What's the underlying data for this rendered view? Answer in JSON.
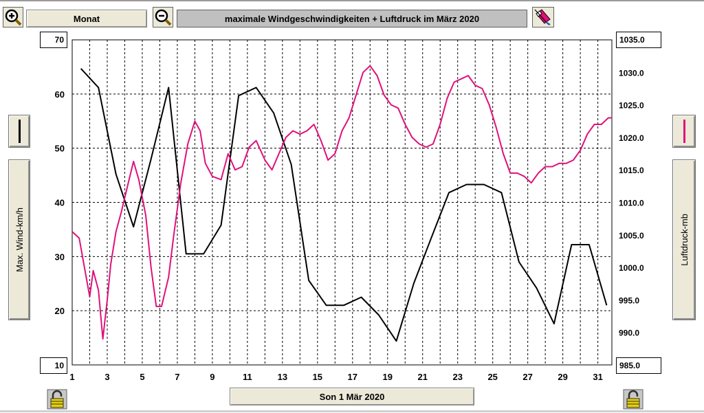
{
  "toolbar": {
    "zoom_in_icon": "magnifier-plus-icon",
    "period_label": "Monat",
    "zoom_out_icon": "magnifier-minus-icon",
    "title": "maximale Windgeschwindigkeiten + Luftdruck im März 2020",
    "tool_icon": "eraser-pencil-icon"
  },
  "left_axis": {
    "label": "Max. Wind-km/h",
    "top_value": "70",
    "bottom_value": "10",
    "legend_color": "#000000"
  },
  "right_axis": {
    "label": "Luftdruck-mb",
    "top_value": "1035.0",
    "bottom_value": "985.0",
    "legend_color": "#e0107a"
  },
  "footer": {
    "date_label": "Son 1 Mär 2020",
    "lock_icon": "padlock-icon"
  },
  "chart_data": {
    "type": "line",
    "xlim": [
      1,
      31.8
    ],
    "xticks": [
      "1",
      "3",
      "5",
      "7",
      "9",
      "11",
      "13",
      "15",
      "17",
      "19",
      "21",
      "23",
      "25",
      "27",
      "29",
      "31"
    ],
    "left_ylim": [
      10,
      70
    ],
    "left_yticks": [
      "20",
      "30",
      "40",
      "50",
      "60"
    ],
    "right_ylim": [
      985,
      1035
    ],
    "right_yticks": [
      "990.0",
      "995.0",
      "1000.0",
      "1005.0",
      "1010.0",
      "1015.0",
      "1020.0",
      "1025.0",
      "1030.0"
    ],
    "grid": true,
    "series": [
      {
        "axis": "left",
        "color": "#000000",
        "x": [
          1.5,
          2.5,
          3.5,
          4.5,
          5.5,
          6.5,
          7.5,
          8.5,
          9.5,
          10.5,
          11.5,
          12.5,
          13.5,
          14.5,
          15.5,
          16.5,
          17.5,
          18.5,
          19.5,
          20.5,
          21.5,
          22.5,
          23.5,
          24.5,
          25.5,
          26.5,
          27.5,
          28.5,
          29.5,
          30.5,
          31.5
        ],
        "values": [
          64.7,
          61.2,
          45.2,
          35.5,
          48.0,
          61.2,
          30.5,
          30.5,
          35.8,
          59.7,
          61.2,
          56.5,
          47.0,
          25.6,
          21.0,
          21.0,
          22.5,
          19.2,
          14.4,
          25.1,
          33.5,
          41.8,
          43.3,
          43.3,
          41.8,
          29.0,
          24.2,
          17.6,
          32.2,
          32.2,
          21.0
        ]
      },
      {
        "axis": "right",
        "color": "#e0107a",
        "x": [
          1.0,
          1.4,
          1.7,
          2.0,
          2.2,
          2.5,
          2.75,
          3.0,
          3.2,
          3.5,
          3.8,
          4.2,
          4.5,
          4.8,
          5.2,
          5.5,
          5.8,
          6.1,
          6.5,
          6.8,
          7.2,
          7.6,
          8.0,
          8.3,
          8.6,
          9.0,
          9.5,
          9.9,
          10.3,
          10.7,
          11.1,
          11.5,
          12.0,
          12.4,
          12.8,
          13.2,
          13.6,
          14.0,
          14.4,
          14.8,
          15.2,
          15.6,
          16.0,
          16.4,
          16.8,
          17.2,
          17.6,
          18.0,
          18.4,
          18.8,
          19.2,
          19.6,
          20.0,
          20.4,
          20.8,
          21.2,
          21.6,
          22.0,
          22.4,
          22.8,
          23.2,
          23.6,
          24.0,
          24.4,
          24.8,
          25.2,
          25.6,
          26.0,
          26.4,
          26.8,
          27.2,
          27.6,
          28.0,
          28.4,
          28.8,
          29.2,
          29.6,
          30.0,
          30.4,
          30.8,
          31.2,
          31.6,
          31.8
        ],
        "values": [
          1005.5,
          1004.5,
          1000.0,
          995.5,
          999.5,
          996.5,
          989.0,
          995.0,
          1000.5,
          1005.5,
          1008.5,
          1013.0,
          1016.3,
          1013.5,
          1008.0,
          1000.0,
          994.0,
          994.0,
          998.5,
          1005.0,
          1013.0,
          1019.0,
          1022.5,
          1021.0,
          1016.0,
          1014.0,
          1013.5,
          1017.5,
          1015.0,
          1015.5,
          1018.5,
          1019.5,
          1016.5,
          1015.0,
          1017.5,
          1020.0,
          1021.0,
          1020.5,
          1021.0,
          1022.0,
          1019.5,
          1016.5,
          1017.5,
          1021.0,
          1023.0,
          1026.5,
          1030.0,
          1031.0,
          1029.5,
          1026.5,
          1025.0,
          1024.5,
          1022.0,
          1020.0,
          1019.0,
          1018.5,
          1019.0,
          1022.0,
          1026.0,
          1028.5,
          1029.0,
          1029.5,
          1028.0,
          1027.5,
          1025.0,
          1021.5,
          1017.5,
          1014.5,
          1014.5,
          1014.0,
          1013.0,
          1014.5,
          1015.5,
          1015.5,
          1016.0,
          1016.0,
          1016.5,
          1018.0,
          1020.5,
          1022.0,
          1022.0,
          1023.0,
          1023.0
        ]
      }
    ]
  }
}
